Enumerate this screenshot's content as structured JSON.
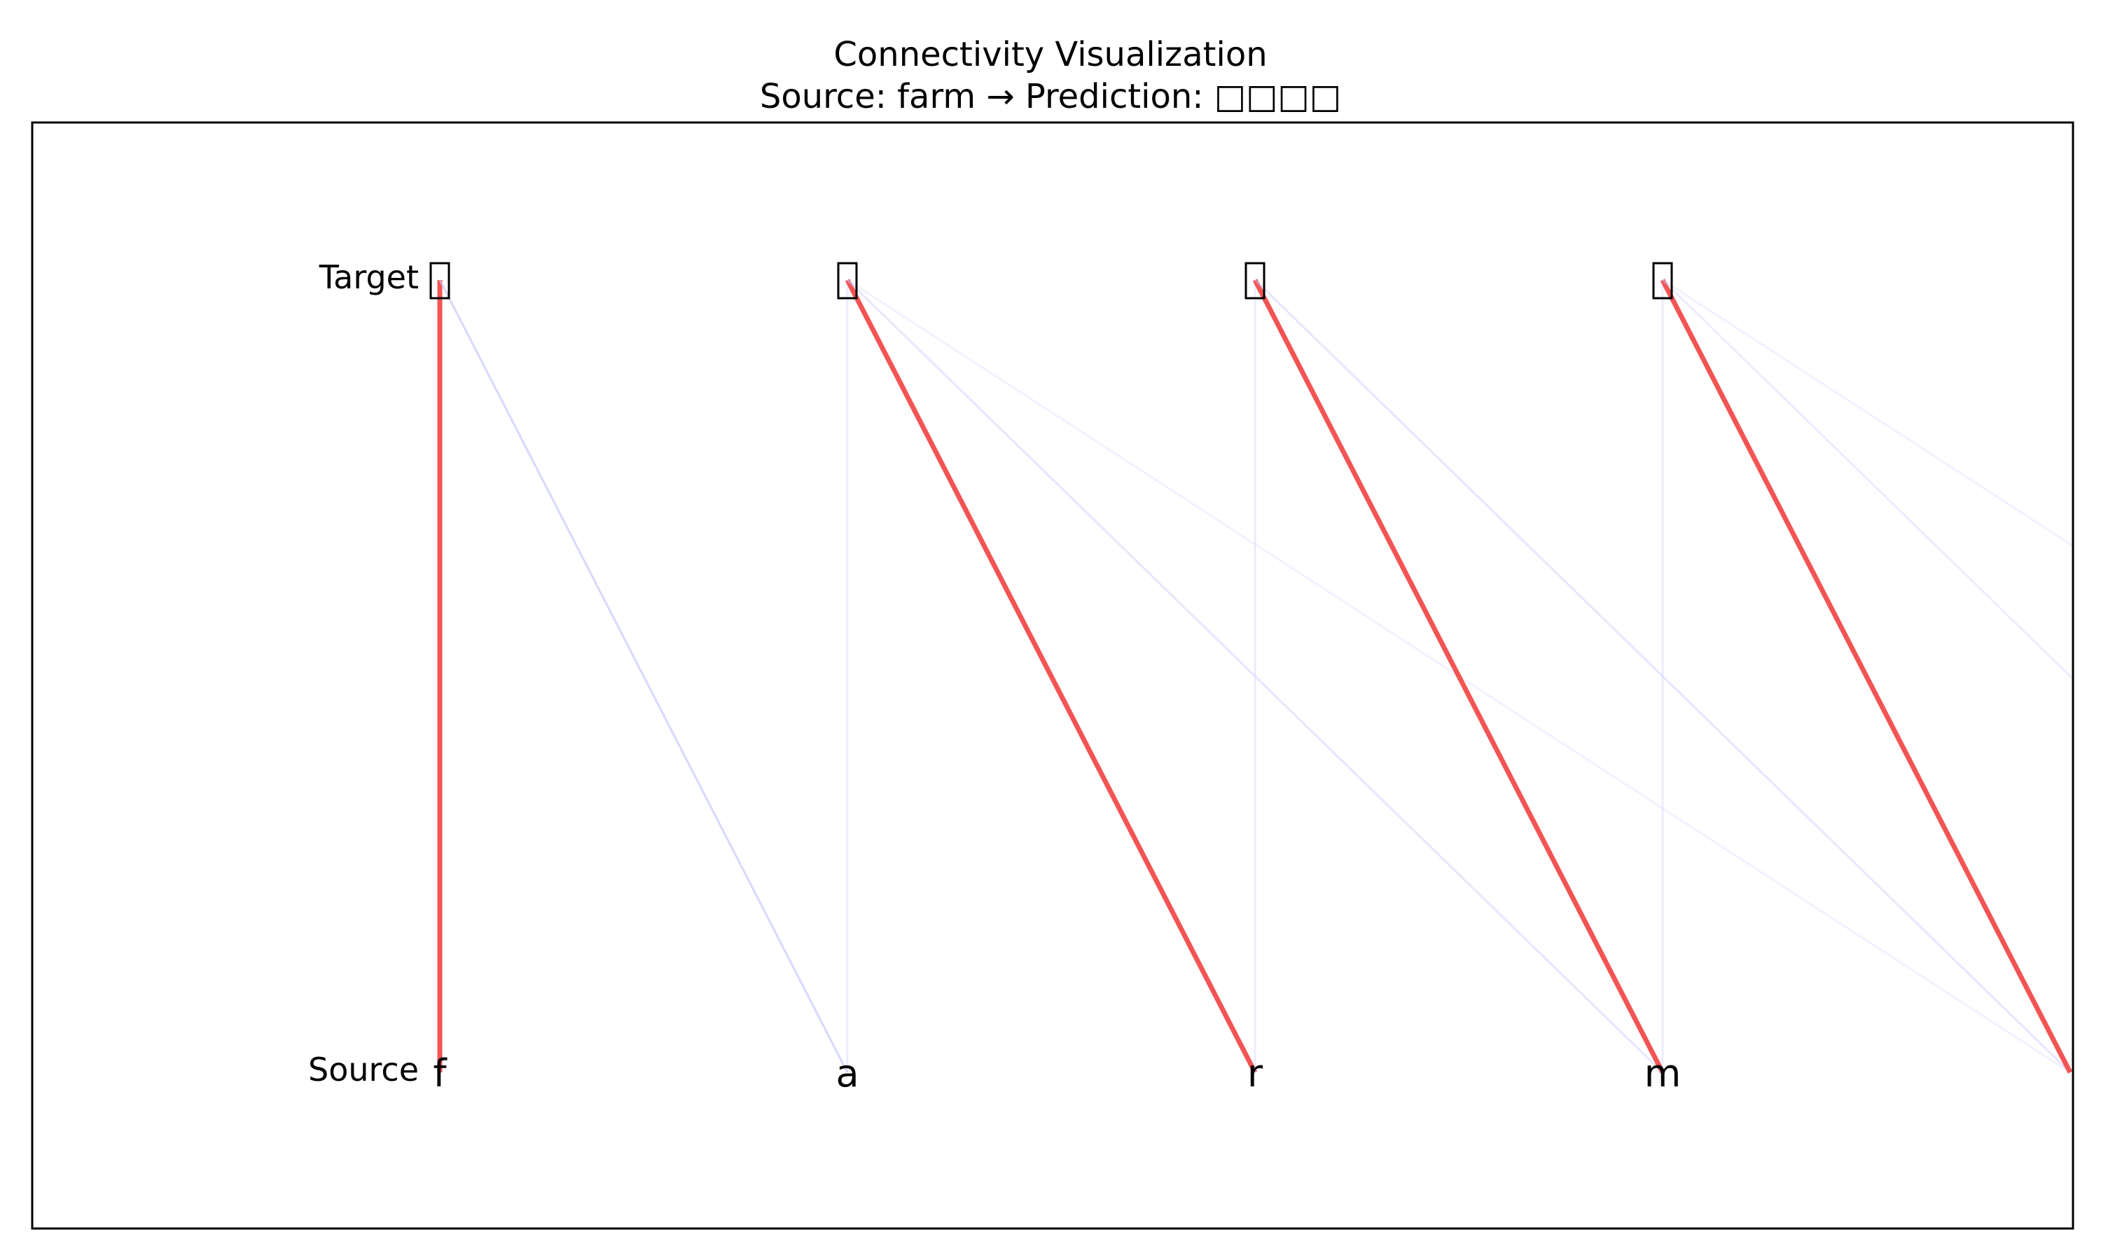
{
  "title": "Connectivity Visualization",
  "subtitle": "Source: farm → Prediction: □□□□",
  "row_labels": {
    "target": "Target",
    "source": "Source"
  },
  "source_chars": [
    "f",
    "a",
    "r",
    "m",
    ""
  ],
  "target_chars": [
    "□",
    "□",
    "□",
    "□"
  ],
  "colors": {
    "strong": "#f24b4b",
    "weak": "#c8c8ff",
    "frame": "#000000"
  },
  "connections": [
    {
      "target": 0,
      "source": 0,
      "strength": "strong",
      "opacity": 0.95
    },
    {
      "target": 0,
      "source": 1,
      "strength": "weak",
      "opacity": 0.7
    },
    {
      "target": 1,
      "source": 1,
      "strength": "weak",
      "opacity": 0.35
    },
    {
      "target": 1,
      "source": 2,
      "strength": "strong",
      "opacity": 0.95
    },
    {
      "target": 1,
      "source": 3,
      "strength": "weak",
      "opacity": 0.45
    },
    {
      "target": 1,
      "source": 4,
      "strength": "weak",
      "opacity": 0.25
    },
    {
      "target": 2,
      "source": 2,
      "strength": "weak",
      "opacity": 0.35
    },
    {
      "target": 2,
      "source": 3,
      "strength": "strong",
      "opacity": 0.95
    },
    {
      "target": 2,
      "source": 4,
      "strength": "weak",
      "opacity": 0.45
    },
    {
      "target": 3,
      "source": 3,
      "strength": "weak",
      "opacity": 0.35
    },
    {
      "target": 3,
      "source": 4,
      "strength": "strong",
      "opacity": 0.95
    },
    {
      "target": 3,
      "source": 5,
      "strength": "weak",
      "opacity": 0.35
    },
    {
      "target": 3,
      "source": 6,
      "strength": "weak",
      "opacity": 0.25
    }
  ]
}
